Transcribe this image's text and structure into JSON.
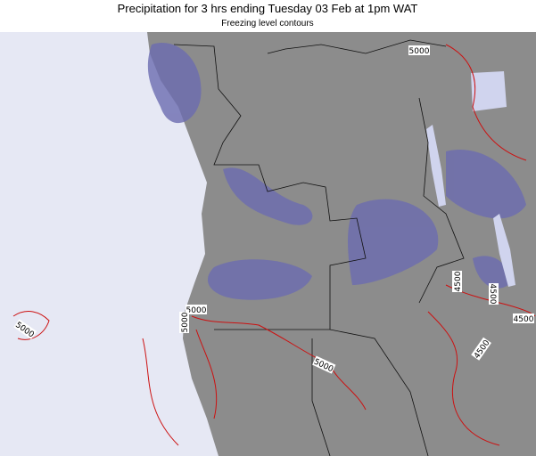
{
  "header": {
    "title": "Precipitation for 3 hrs ending Tuesday 03 Feb at 1pm WAT",
    "subtitle": "Freezing level contours"
  },
  "contour_labels": [
    "5000",
    "5000",
    "5000",
    "5000",
    "5000",
    "4500",
    "4500",
    "4500",
    "4500"
  ]
}
